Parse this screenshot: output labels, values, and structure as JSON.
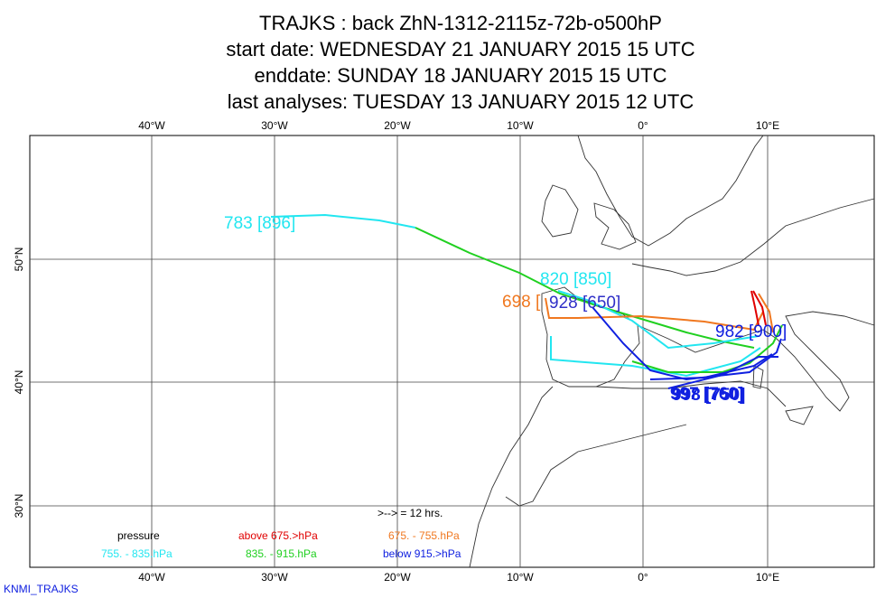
{
  "header": {
    "lines": [
      "TRAJKS : back ZhN-1312-2115z-72b-o500hP",
      "start date:  WEDNESDAY 21 JANUARY   2015 15 UTC",
      "enddate:  SUNDAY     18 JANUARY   2015 15 UTC",
      "last analyses:  TUESDAY   13 JANUARY   2015 12 UTC"
    ]
  },
  "map": {
    "lon_labels": [
      "40°W",
      "30°W",
      "20°W",
      "10°W",
      "0°",
      "10°E"
    ],
    "lat_labels": [
      "50°N",
      "40°N",
      "30°N"
    ],
    "trajectory_labels": [
      {
        "text": "783 [896]",
        "color": "#22e6f0"
      },
      {
        "text": "820 [850]",
        "color": "#22e6f0"
      },
      {
        "text": "698 [",
        "color": "#f07820"
      },
      {
        "text": "928 [650]",
        "color": "#3030c8"
      },
      {
        "text": "982 [900]",
        "color": "#1020e0"
      },
      {
        "text": "997 [760]",
        "color": "#1020e0"
      },
      {
        "text": "998 [750]",
        "color": "#1020e0"
      }
    ]
  },
  "legend": {
    "interval": ">--> = 12 hrs.",
    "items": [
      {
        "text": "pressure",
        "color": "#000000"
      },
      {
        "text": "above   675.>hPa",
        "color": "#e00000"
      },
      {
        "text": "675. -     755.hPa",
        "color": "#f07820"
      },
      {
        "text": "755. -     835.hPa",
        "color": "#22e6f0"
      },
      {
        "text": "835. -     915.hPa",
        "color": "#20d020"
      },
      {
        "text": "below    915.>hPa",
        "color": "#1020e0"
      }
    ]
  },
  "footer": {
    "credit": "KNMI_TRAJKS"
  }
}
